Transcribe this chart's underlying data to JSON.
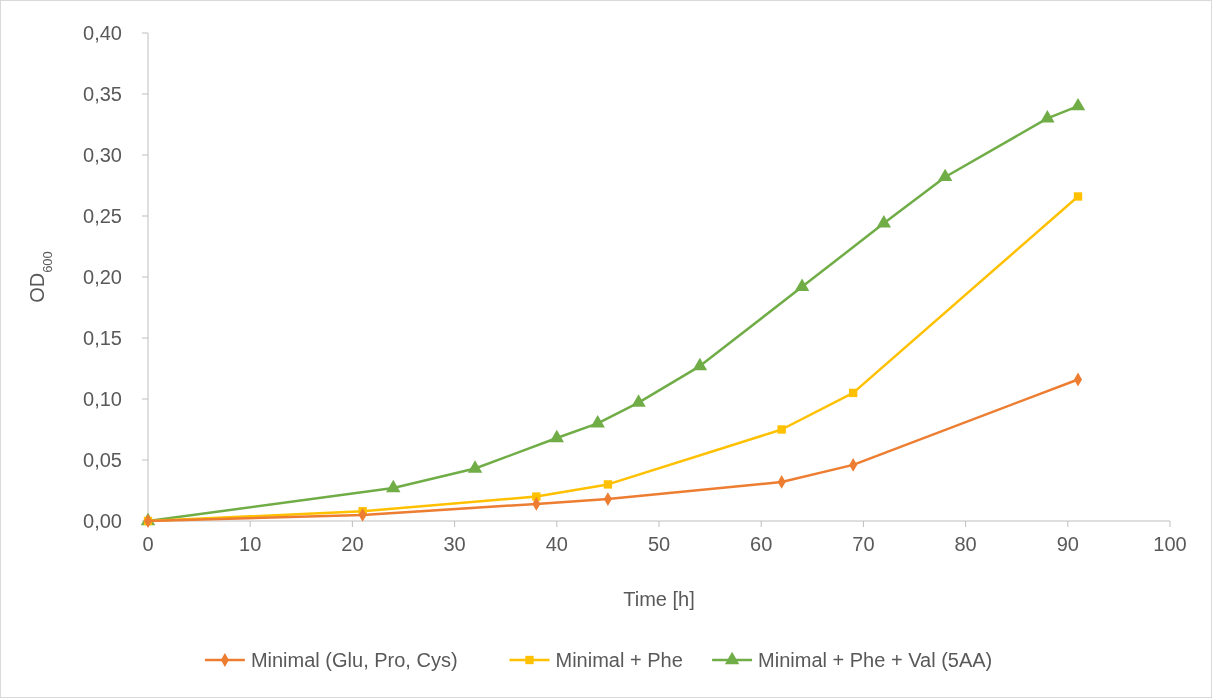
{
  "chart_data": {
    "type": "line",
    "xlabel": "Time [h]",
    "ylabel": "OD$_{600}$",
    "xlim": [
      0,
      100
    ],
    "xticks": [
      0,
      10,
      20,
      30,
      40,
      50,
      60,
      70,
      80,
      90,
      100
    ],
    "ylim": [
      0,
      0.4
    ],
    "yticks": [
      {
        "value": 0,
        "label": "0,00"
      },
      {
        "value": 0.05,
        "label": "0,05"
      },
      {
        "value": 0.1,
        "label": "0,10"
      },
      {
        "value": 0.15,
        "label": "0,15"
      },
      {
        "value": 0.2,
        "label": "0,20"
      },
      {
        "value": 0.25,
        "label": "0,25"
      },
      {
        "value": 0.3,
        "label": "0,30"
      },
      {
        "value": 0.35,
        "label": "0,35"
      },
      {
        "value": 0.4,
        "label": "0,40"
      }
    ],
    "grid": false,
    "legend": "bottom",
    "line_style": "solid",
    "series": [
      {
        "name": "Minimal (Glu, Pro, Cys)",
        "color": "#ed7d31",
        "marker": "diamond",
        "x": [
          0,
          21,
          38,
          45,
          62,
          69,
          91
        ],
        "values": [
          0,
          0.005,
          0.014,
          0.018,
          0.032,
          0.046,
          0.116
        ]
      },
      {
        "name": "Minimal + Phe",
        "color": "#ffc000",
        "marker": "square",
        "x": [
          0,
          21,
          38,
          45,
          62,
          69,
          91
        ],
        "values": [
          0,
          0.008,
          0.02,
          0.03,
          0.075,
          0.105,
          0.266
        ]
      },
      {
        "name": "Minimal + Phe + Val (5AA)",
        "color": "#70ad47",
        "marker": "triangle",
        "x": [
          0,
          24,
          32,
          40,
          44,
          48,
          54,
          64,
          72,
          78,
          88,
          91
        ],
        "values": [
          0,
          0.027,
          0.043,
          0.068,
          0.08,
          0.097,
          0.127,
          0.192,
          0.244,
          0.282,
          0.33,
          0.34
        ]
      }
    ]
  }
}
